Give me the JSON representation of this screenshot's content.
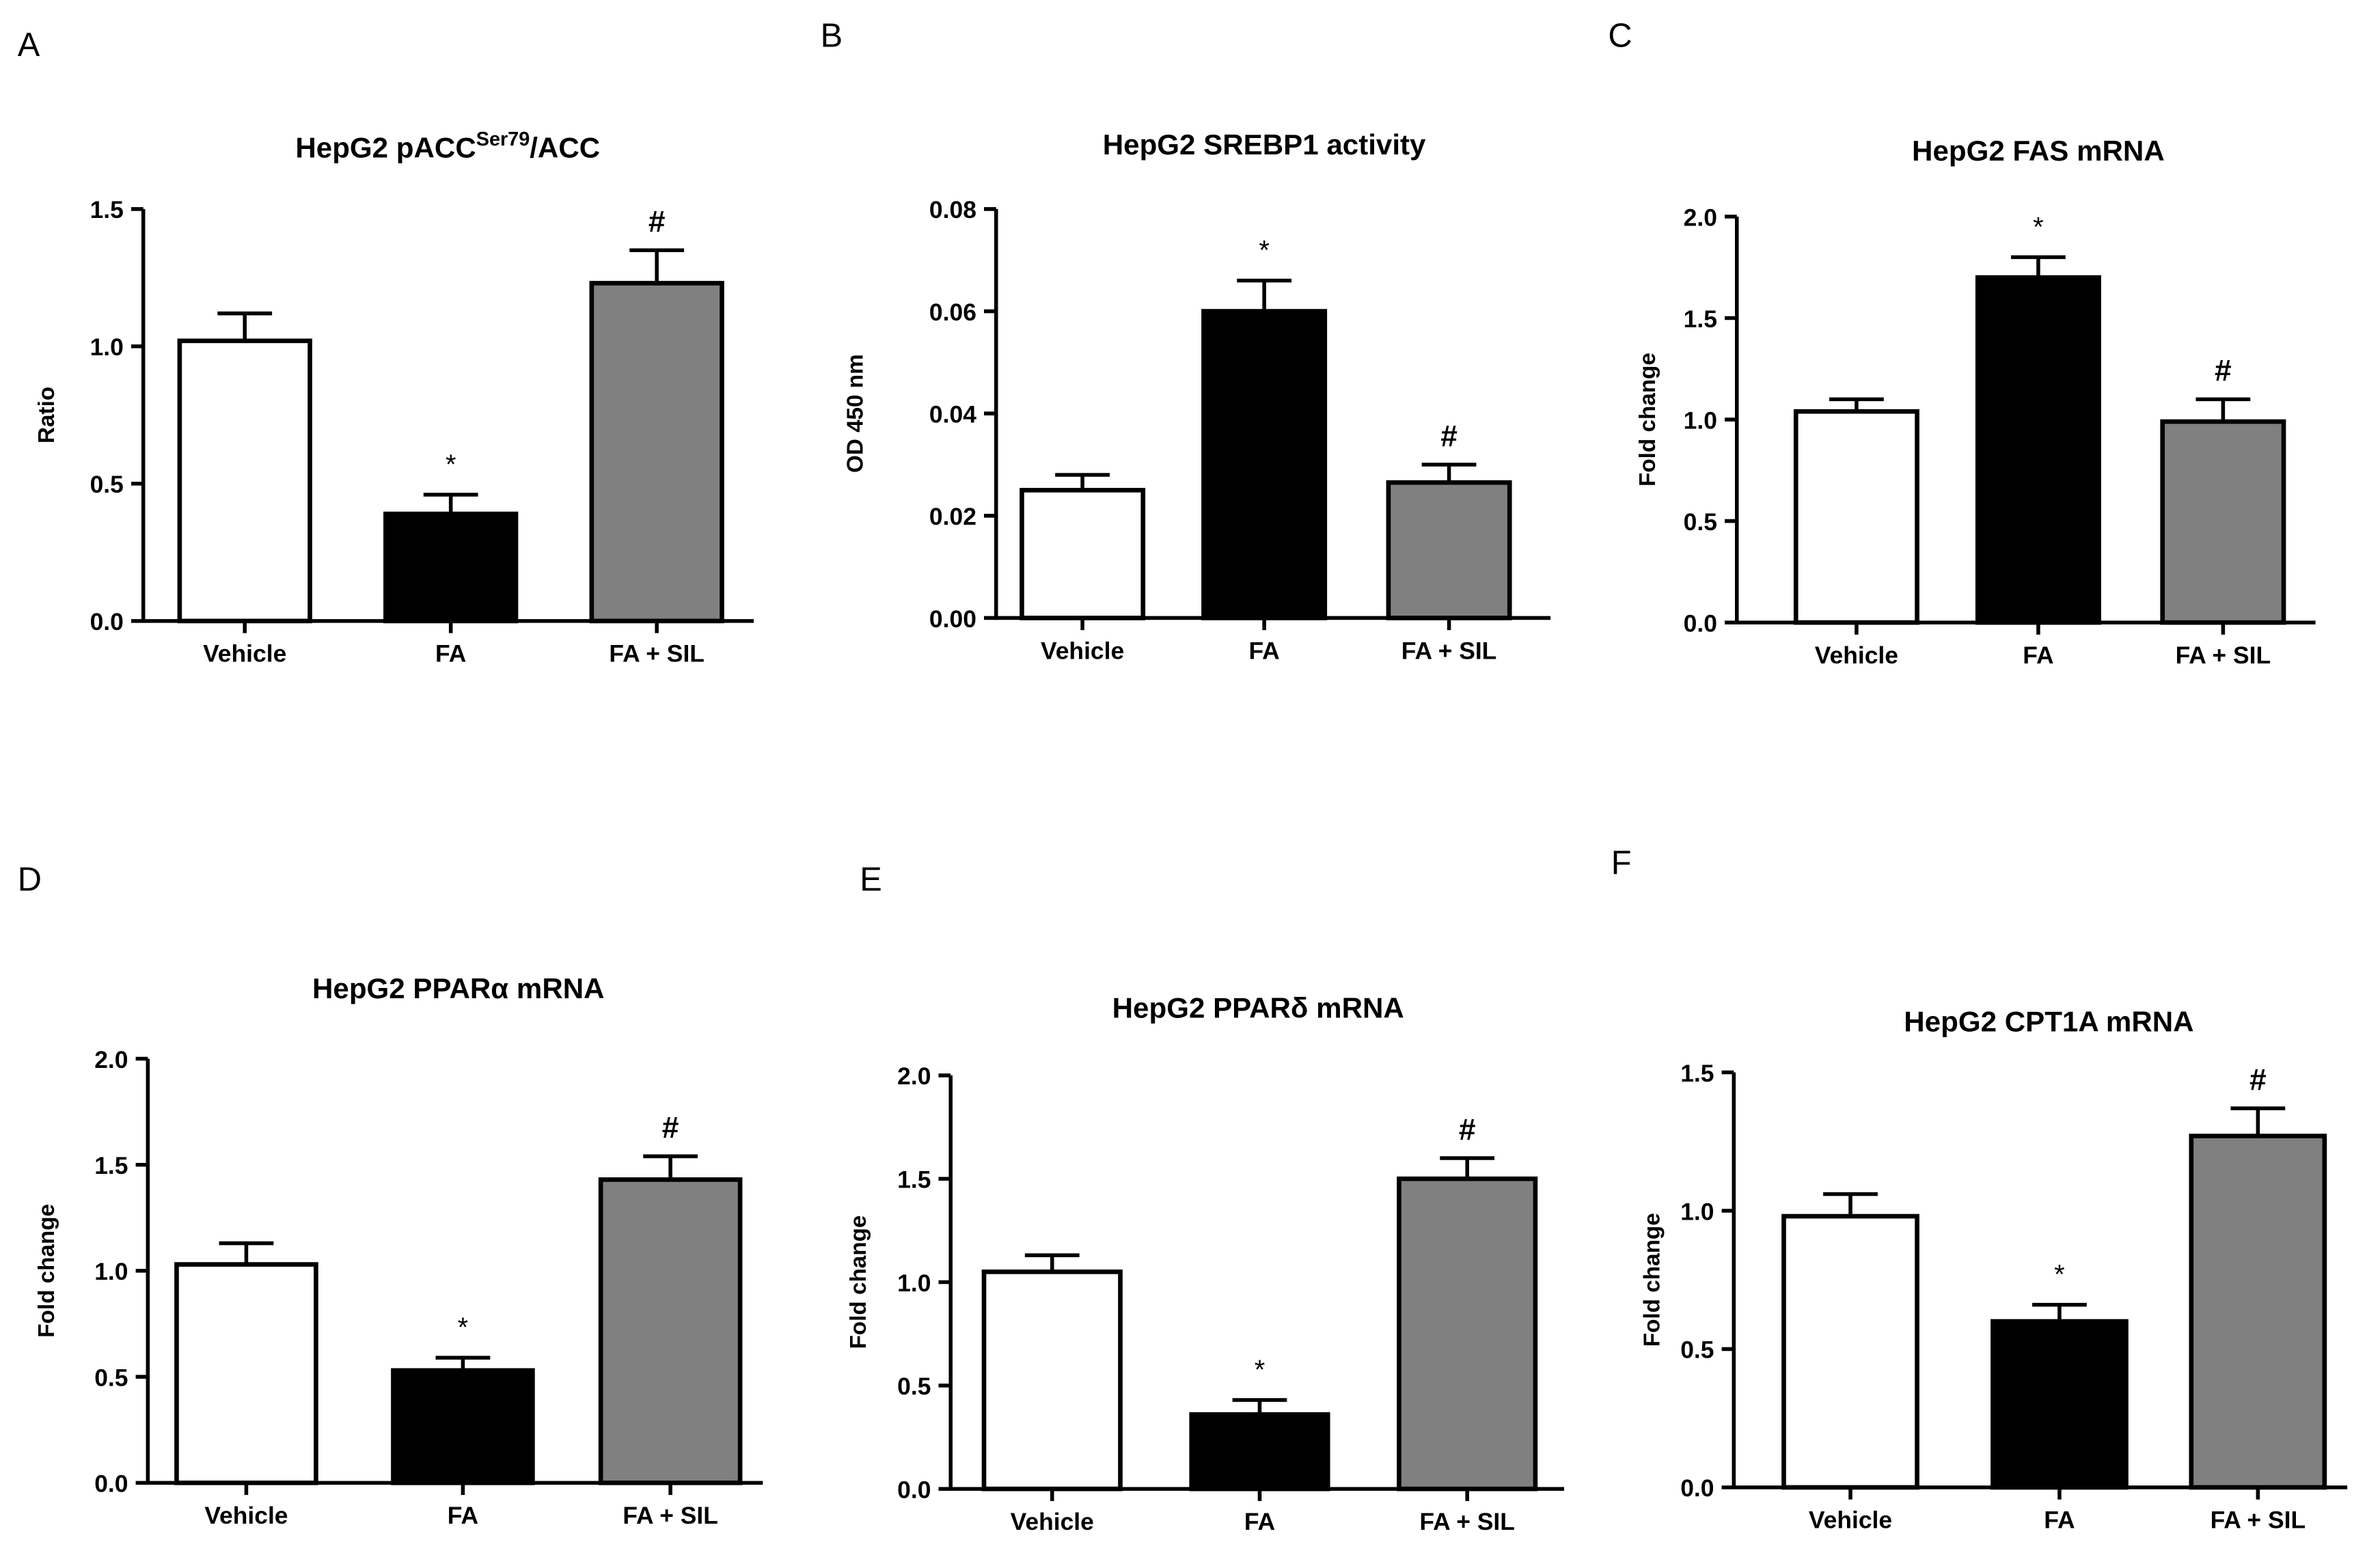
{
  "figure": {
    "colors": {
      "vehicle": "#ffffff",
      "fa": "#000000",
      "fa_sil": "#808080",
      "ink": "#000000"
    }
  },
  "chart_data": [
    {
      "panel": "A",
      "type": "bar",
      "title": "HepG2 pACC",
      "title_sup": "Ser79",
      "title_suffix": "/ACC",
      "ylabel": "Ratio",
      "categories": [
        "Vehicle",
        "FA",
        "FA + SIL"
      ],
      "values": [
        1.02,
        0.39,
        1.23
      ],
      "errors": [
        0.1,
        0.07,
        0.12
      ],
      "marks": [
        "",
        "*",
        "#"
      ],
      "ylim": [
        0,
        1.5
      ],
      "yticks": [
        "0.0",
        "0.5",
        "1.0",
        "1.5"
      ]
    },
    {
      "panel": "B",
      "type": "bar",
      "title": "HepG2 SREBP1 activity",
      "ylabel": "OD 450 nm",
      "categories": [
        "Vehicle",
        "FA",
        "FA + SIL"
      ],
      "values": [
        0.025,
        0.06,
        0.0265
      ],
      "errors": [
        0.003,
        0.006,
        0.0035
      ],
      "marks": [
        "",
        "*",
        "#"
      ],
      "ylim": [
        0,
        0.08
      ],
      "yticks": [
        "0.00",
        "0.02",
        "0.04",
        "0.06",
        "0.08"
      ]
    },
    {
      "panel": "C",
      "type": "bar",
      "title": "HepG2 FAS mRNA",
      "ylabel": "Fold change",
      "categories": [
        "Vehicle",
        "FA",
        "FA + SIL"
      ],
      "values": [
        1.04,
        1.7,
        0.99
      ],
      "errors": [
        0.06,
        0.1,
        0.11
      ],
      "marks": [
        "",
        "*",
        "#"
      ],
      "ylim": [
        0,
        2.0
      ],
      "yticks": [
        "0.0",
        "0.5",
        "1.0",
        "1.5",
        "2.0"
      ]
    },
    {
      "panel": "D",
      "type": "bar",
      "title": "HepG2 PPARα mRNA",
      "ylabel": "Fold change",
      "categories": [
        "Vehicle",
        "FA",
        "FA + SIL"
      ],
      "values": [
        1.03,
        0.53,
        1.43
      ],
      "errors": [
        0.1,
        0.06,
        0.11
      ],
      "marks": [
        "",
        "*",
        "#"
      ],
      "ylim": [
        0,
        2.0
      ],
      "yticks": [
        "0.0",
        "0.5",
        "1.0",
        "1.5",
        "2.0"
      ]
    },
    {
      "panel": "E",
      "type": "bar",
      "title": "HepG2 PPARδ mRNA",
      "ylabel": "Fold change",
      "categories": [
        "Vehicle",
        "FA",
        "FA + SIL"
      ],
      "values": [
        1.05,
        0.36,
        1.5
      ],
      "errors": [
        0.08,
        0.07,
        0.1
      ],
      "marks": [
        "",
        "*",
        "#"
      ],
      "ylim": [
        0,
        2.0
      ],
      "yticks": [
        "0.0",
        "0.5",
        "1.0",
        "1.5",
        "2.0"
      ]
    },
    {
      "panel": "F",
      "type": "bar",
      "title": "HepG2 CPT1A  mRNA",
      "ylabel": "Fold change",
      "categories": [
        "Vehicle",
        "FA",
        "FA + SIL"
      ],
      "values": [
        0.98,
        0.6,
        1.27
      ],
      "errors": [
        0.08,
        0.06,
        0.1
      ],
      "marks": [
        "",
        "*",
        "#"
      ],
      "ylim": [
        0,
        1.5
      ],
      "yticks": [
        "0.0",
        "0.5",
        "1.0",
        "1.5"
      ]
    }
  ]
}
